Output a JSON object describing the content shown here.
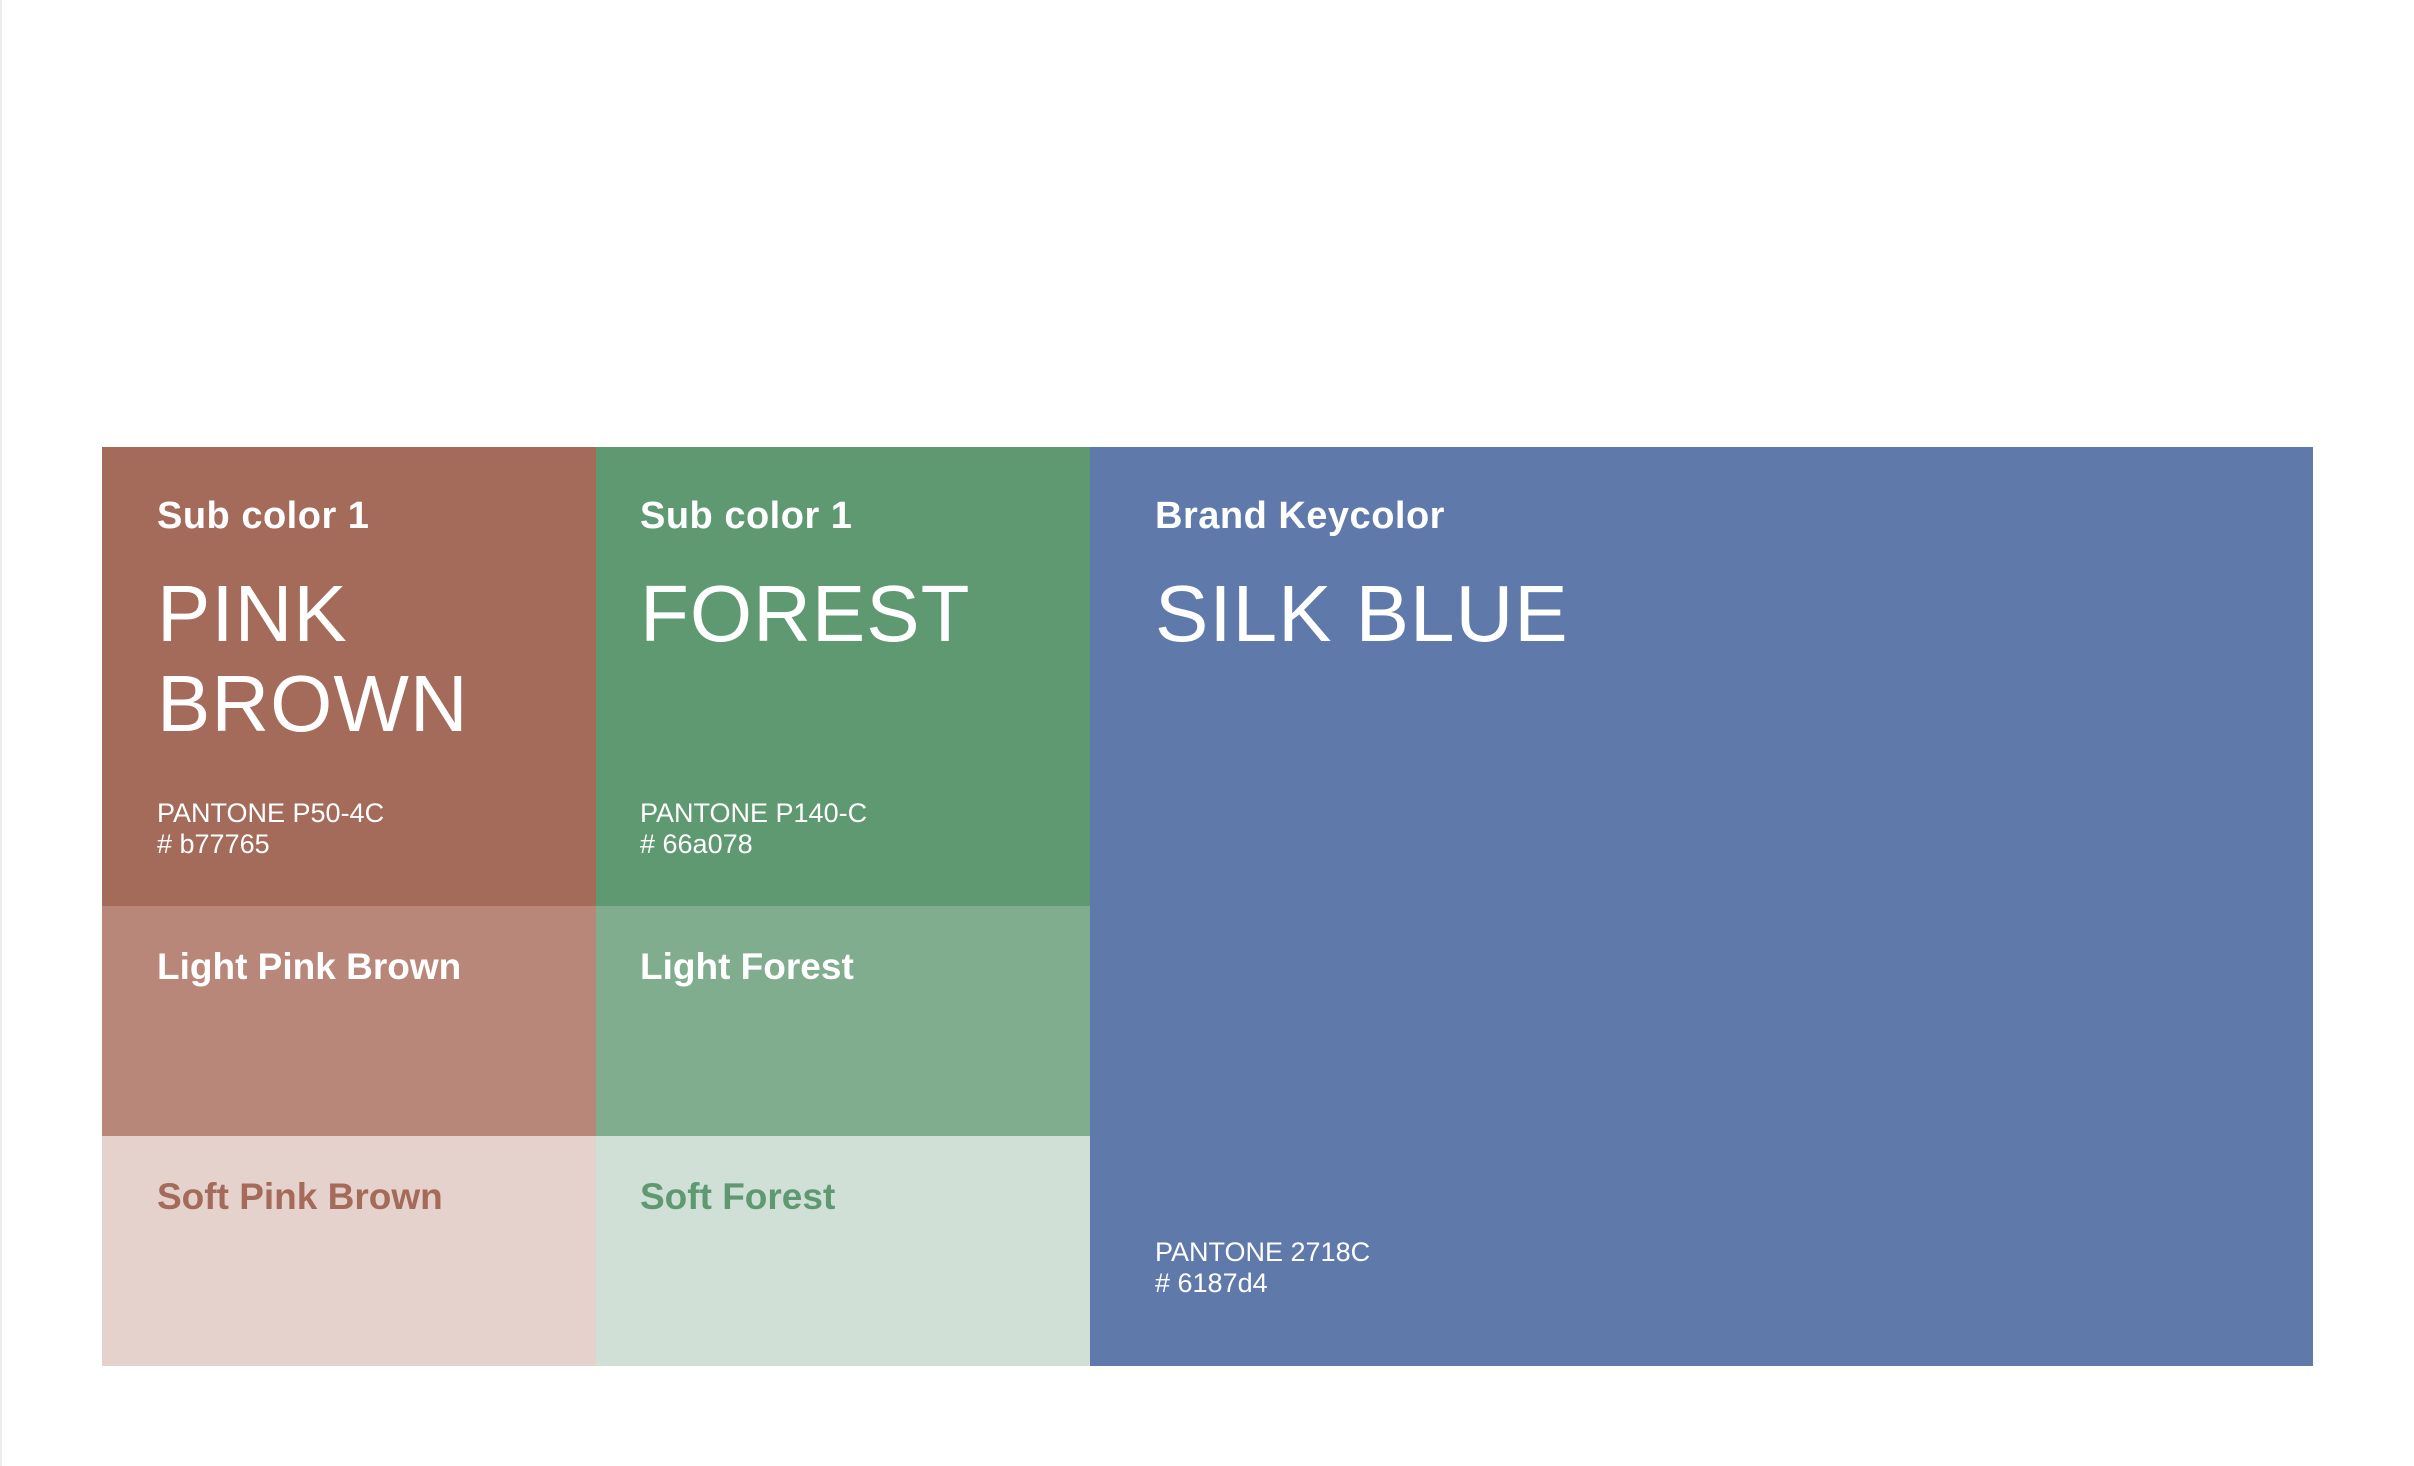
{
  "colors": {
    "pink_brown": "#a46a5a",
    "light_pink_brown": "#b88779",
    "soft_pink_brown": "#e5d2cd",
    "forest": "#5f9971",
    "light_forest": "#7fad8d",
    "soft_forest": "#d0e0d6",
    "silk_blue": "#6079ab",
    "text_white": "#ffffff"
  },
  "pink_brown": {
    "sub_label": "Sub color 1",
    "name_line1": "PINK",
    "name_line2": "BROWN",
    "pantone": "PANTONE P50-4C",
    "hex": "# b77765",
    "light_label": "Light Pink Brown",
    "soft_label": "Soft Pink Brown"
  },
  "forest": {
    "sub_label": "Sub color 1",
    "name": "FOREST",
    "pantone": "PANTONE P140-C",
    "hex": "# 66a078",
    "light_label": "Light Forest",
    "soft_label": "Soft Forest"
  },
  "silk_blue": {
    "sub_label": "Brand Keycolor",
    "name": "SILK BLUE",
    "pantone": "PANTONE 2718C",
    "hex": "# 6187d4"
  }
}
